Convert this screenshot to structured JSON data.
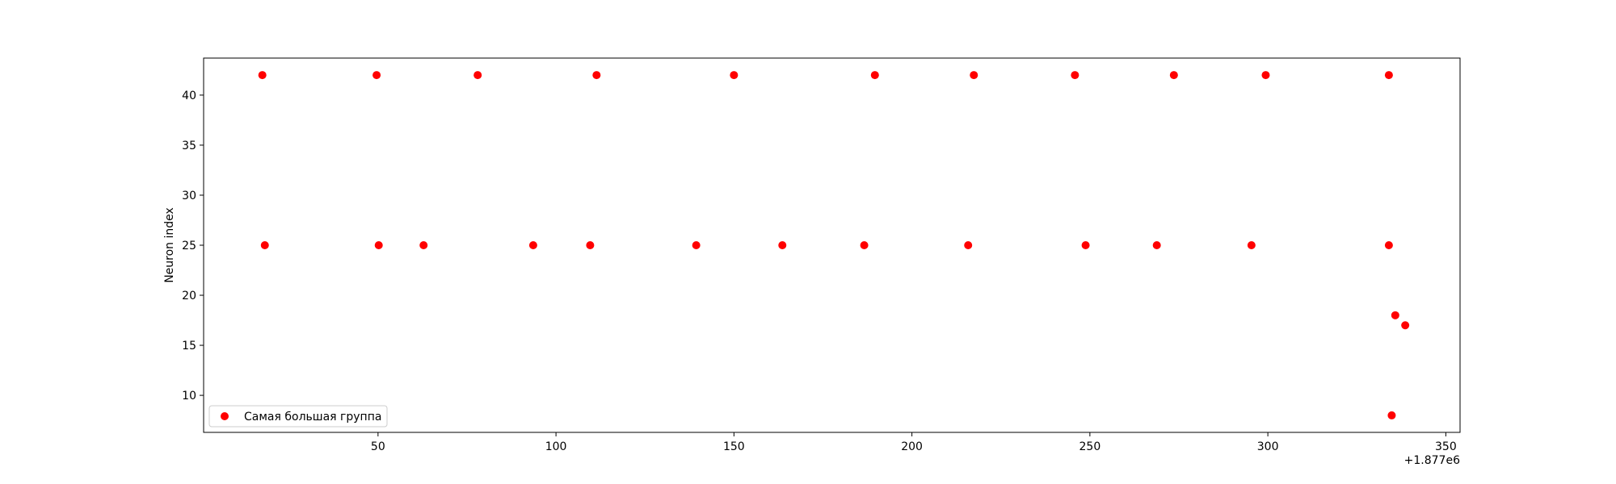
{
  "chart_data": {
    "type": "scatter",
    "title": "",
    "xlabel": "",
    "ylabel": "Neuron index",
    "x_offset_label": "+1.877e6",
    "xlim": [
      1,
      354
    ],
    "ylim": [
      6.3,
      43.7
    ],
    "xticks": [
      50,
      100,
      150,
      200,
      250,
      300,
      350
    ],
    "yticks": [
      10,
      15,
      20,
      25,
      30,
      35,
      40
    ],
    "grid": false,
    "legend_position": "lower-left",
    "series": [
      {
        "name": "Самая большая группа",
        "color": "#ff0000",
        "points": [
          {
            "x": 17.5,
            "y": 42
          },
          {
            "x": 49.6,
            "y": 42
          },
          {
            "x": 78.0,
            "y": 42
          },
          {
            "x": 111.4,
            "y": 42
          },
          {
            "x": 150.0,
            "y": 42
          },
          {
            "x": 189.6,
            "y": 42
          },
          {
            "x": 217.4,
            "y": 42
          },
          {
            "x": 245.8,
            "y": 42
          },
          {
            "x": 273.6,
            "y": 42
          },
          {
            "x": 299.4,
            "y": 42
          },
          {
            "x": 334.0,
            "y": 42
          },
          {
            "x": 18.2,
            "y": 25
          },
          {
            "x": 50.2,
            "y": 25
          },
          {
            "x": 62.8,
            "y": 25
          },
          {
            "x": 93.6,
            "y": 25
          },
          {
            "x": 109.6,
            "y": 25
          },
          {
            "x": 139.4,
            "y": 25
          },
          {
            "x": 163.6,
            "y": 25
          },
          {
            "x": 186.6,
            "y": 25
          },
          {
            "x": 215.8,
            "y": 25
          },
          {
            "x": 248.8,
            "y": 25
          },
          {
            "x": 268.8,
            "y": 25
          },
          {
            "x": 295.4,
            "y": 25
          },
          {
            "x": 334.0,
            "y": 25
          },
          {
            "x": 335.8,
            "y": 18
          },
          {
            "x": 338.6,
            "y": 17
          },
          {
            "x": 334.8,
            "y": 8
          }
        ]
      }
    ]
  }
}
